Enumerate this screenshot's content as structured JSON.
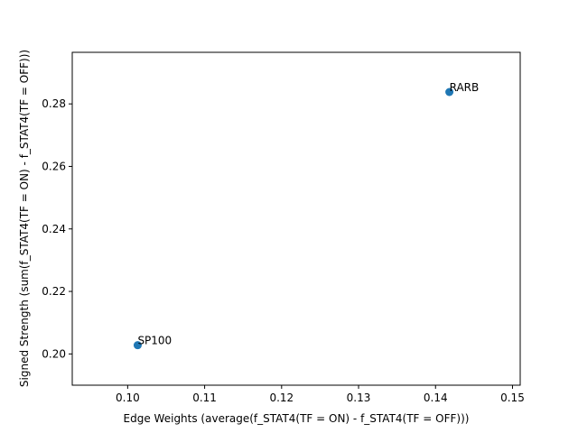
{
  "chart_data": {
    "type": "scatter",
    "title": "",
    "xlabel": "Edge Weights (average(f_STAT4(TF = ON) - f_STAT4(TF = OFF)))",
    "ylabel": "Signed Strength (sum(f_STAT4(TF = ON) - f_STAT4(TF = OFF)))",
    "xlim": [
      0.0928,
      0.151
    ],
    "ylim": [
      0.19,
      0.2965
    ],
    "xticks": [
      0.1,
      0.11,
      0.12,
      0.13,
      0.14,
      0.15
    ],
    "xtick_labels": [
      "0.10",
      "0.11",
      "0.12",
      "0.13",
      "0.14",
      "0.15"
    ],
    "yticks": [
      0.2,
      0.22,
      0.24,
      0.26,
      0.28
    ],
    "ytick_labels": [
      "0.20",
      "0.22",
      "0.24",
      "0.26",
      "0.28"
    ],
    "grid": false,
    "marker_color": "#1f77b4",
    "points": [
      {
        "label": "SP100",
        "x": 0.1013,
        "y": 0.2028
      },
      {
        "label": "RARB",
        "x": 0.1418,
        "y": 0.2838
      }
    ]
  }
}
